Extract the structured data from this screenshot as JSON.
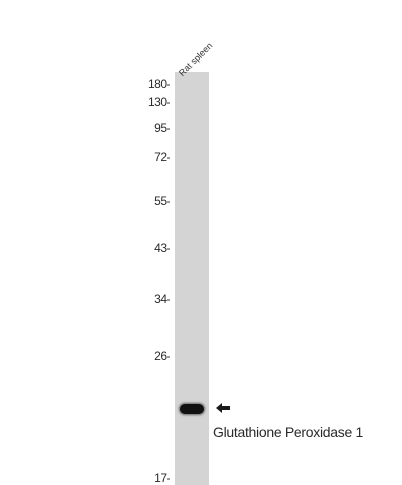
{
  "lane_label": "Rat spleen",
  "markers": [
    "180-",
    "130-",
    "95-",
    "72-",
    "55-",
    "43-",
    "34-",
    "26-",
    "17-"
  ],
  "protein_label": "Glutathione Peroxidase 1",
  "colors": {
    "lane": "#d4d4d4",
    "band": "#111111",
    "text": "#2a2a2a"
  },
  "icons": {
    "band_pointer": "left-arrow-icon"
  }
}
